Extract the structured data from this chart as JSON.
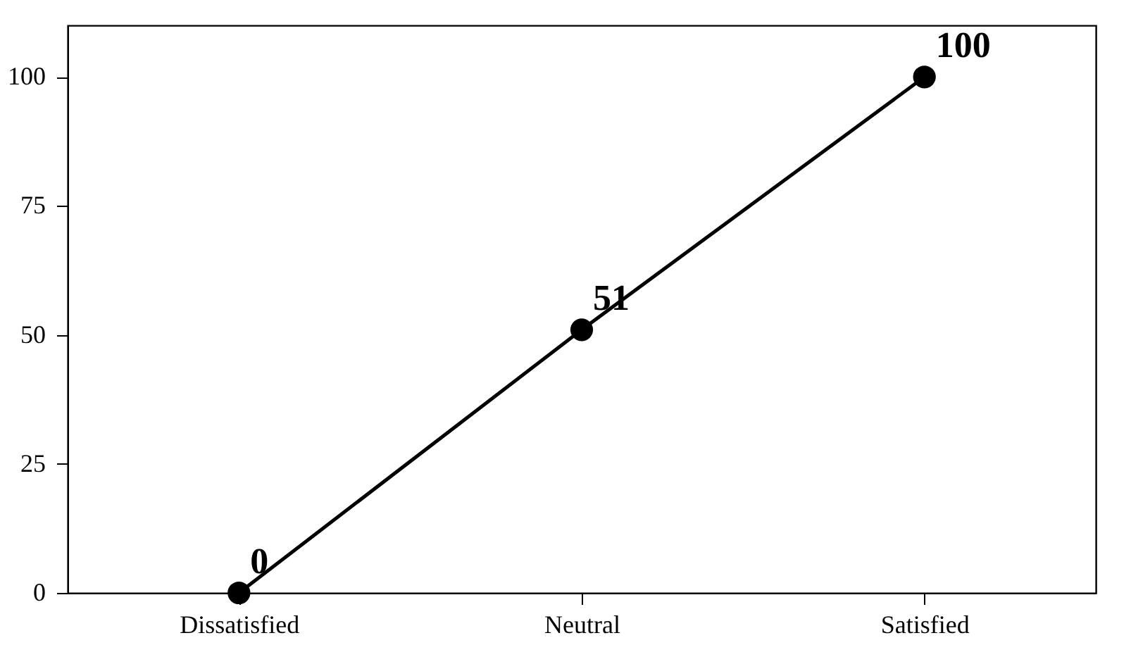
{
  "chart_data": {
    "type": "line",
    "categories": [
      "Dissatisfied",
      "Neutral",
      "Satisfied"
    ],
    "series": [
      {
        "color": "#000000",
        "values": [
          0,
          51,
          100
        ]
      }
    ],
    "ylim": [
      0,
      110
    ],
    "yticks": [
      0,
      25,
      50,
      75,
      100
    ],
    "grid": false,
    "marker": "circle",
    "line_style": "solid",
    "data_labels": true
  }
}
